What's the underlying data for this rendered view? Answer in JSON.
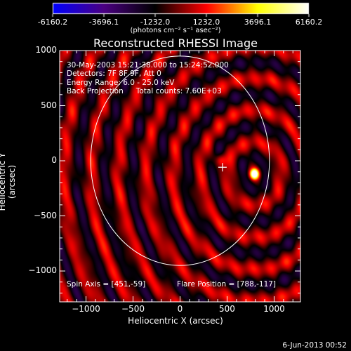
{
  "colorbar": {
    "tick_labels": [
      "-6160.2",
      "-3696.1",
      "-1232.0",
      "1232.0",
      "3696.1",
      "6160.2"
    ],
    "unit_text": "(photons cm⁻² s⁻¹ asec⁻²)",
    "min": -6160.2,
    "max": 6160.2
  },
  "title": "Reconstructed RHESSI Image",
  "info": {
    "line1": "30-May-2003 15:21:38.000 to 15:24:52.000",
    "line2": "Detectors: 7F 8F 9F, Att 0",
    "line3": "Energy Range: 6.0 - 25.0 keV",
    "line4_a": "Back Projection",
    "line4_b": "Total counts: 7.60E+03"
  },
  "spin_axis": "Spin Axis = [451,-59]",
  "flare_position": "Flare Position = [788,-117]",
  "footer": "6-Jun-2013 00:52",
  "chart_data": {
    "type": "heatmap",
    "title": "Reconstructed RHESSI Image",
    "xlabel": "Heliocentric X (arcsec)",
    "ylabel": "Heliocentric Y (arcsec)",
    "xlim": [
      -1280,
      1280
    ],
    "ylim": [
      -1280,
      1000
    ],
    "xticks": [
      -1000,
      -500,
      0,
      500,
      1000
    ],
    "yticks": [
      1000,
      500,
      0,
      -500,
      -1000
    ],
    "xtick_labels": [
      "−1000",
      "−500",
      "0",
      "500",
      "1000"
    ],
    "ytick_labels": [
      "1000",
      "500",
      "0",
      "−500",
      "−1000"
    ],
    "solar_limb_radius": 950,
    "solar_limb_center": [
      0,
      0
    ],
    "spin_axis": [
      451,
      -59
    ],
    "flare_position": [
      788,
      -117
    ],
    "colorscale": [
      "#0000ff",
      "#4b0082",
      "#000000",
      "#ff0000",
      "#ffff00",
      "#ffffff"
    ]
  }
}
